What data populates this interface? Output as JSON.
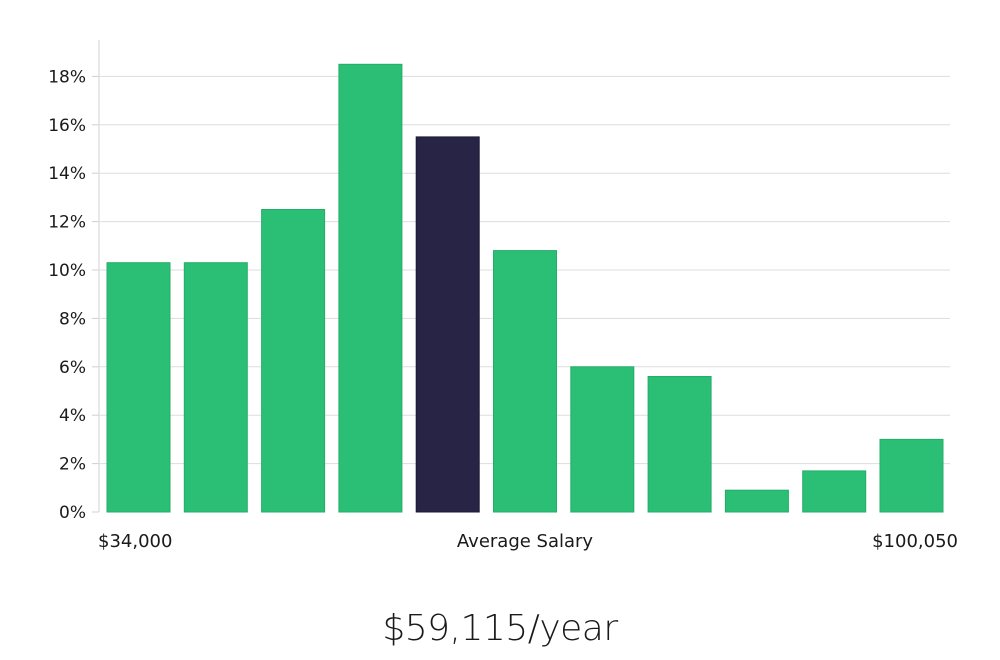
{
  "chart_data": {
    "type": "bar",
    "values": [
      10.3,
      10.3,
      12.5,
      18.5,
      15.5,
      10.8,
      6.0,
      5.6,
      0.9,
      1.7,
      3.0
    ],
    "highlight_index": 4,
    "ylim": [
      0,
      19
    ],
    "yticks": [
      "0%",
      "2%",
      "4%",
      "6%",
      "8%",
      "10%",
      "12%",
      "14%",
      "16%",
      "18%"
    ],
    "ytick_values": [
      0,
      2,
      4,
      6,
      8,
      10,
      12,
      14,
      16,
      18
    ],
    "grid": true,
    "colors": {
      "bar": "#2bbf76",
      "highlight": "#272445"
    },
    "x_labels": {
      "left": "$34,000",
      "center": "Average Salary",
      "right": "$100,050"
    }
  },
  "salary": "$59,115/year"
}
